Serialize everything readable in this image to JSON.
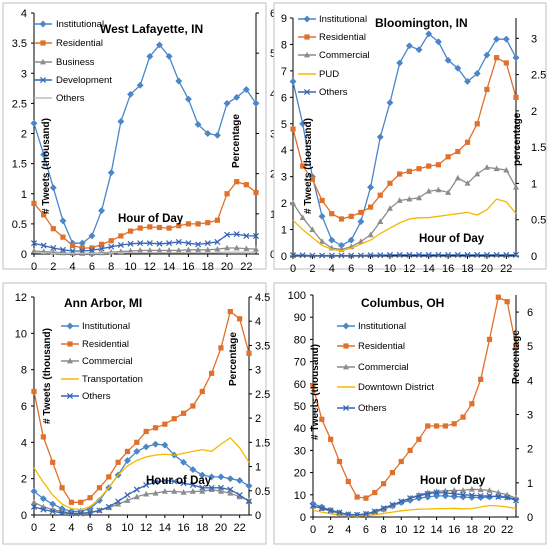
{
  "chart_data": [
    {
      "type": "line",
      "title": "West Lafayette, IN",
      "xlabel": "Hour of Day",
      "ylabel": "# Tweets (thousand)",
      "y2label": "Percentage",
      "x": [
        0,
        1,
        2,
        3,
        4,
        5,
        6,
        7,
        8,
        9,
        10,
        11,
        12,
        13,
        14,
        15,
        16,
        17,
        18,
        19,
        20,
        21,
        22,
        23
      ],
      "xticks": [
        0,
        2,
        4,
        6,
        8,
        10,
        12,
        14,
        16,
        18,
        20,
        22
      ],
      "ylim": [
        0,
        4
      ],
      "yticks": [
        "0",
        "0.5",
        "1",
        "1.5",
        "2",
        "2.5",
        "3",
        "3.5",
        "4"
      ],
      "y2lim": [
        0,
        6
      ],
      "y2ticks": [
        "0",
        "1",
        "2",
        "3",
        "4",
        "5",
        "6"
      ],
      "grid": false,
      "legend_position": "top-left",
      "series": [
        {
          "name": "Institutional",
          "color": "#4a86c8",
          "marker": "diamond",
          "values": [
            2.17,
            1.65,
            1.1,
            0.55,
            0.18,
            0.18,
            0.3,
            0.72,
            1.35,
            2.2,
            2.65,
            2.8,
            3.28,
            3.47,
            3.28,
            2.87,
            2.57,
            2.15,
            2.0,
            1.97,
            2.5,
            2.6,
            2.73,
            2.5
          ]
        },
        {
          "name": "Residential",
          "color": "#e0702a",
          "marker": "square",
          "values": [
            0.84,
            0.65,
            0.42,
            0.28,
            0.14,
            0.1,
            0.1,
            0.16,
            0.22,
            0.3,
            0.38,
            0.43,
            0.45,
            0.44,
            0.43,
            0.47,
            0.5,
            0.5,
            0.52,
            0.56,
            1.0,
            1.2,
            1.15,
            1.02
          ]
        },
        {
          "name": "Business",
          "color": "#8c8c8c",
          "marker": "triangle",
          "values": [
            0.05,
            0.04,
            0.03,
            0.02,
            0.01,
            0.01,
            0.01,
            0.02,
            0.03,
            0.04,
            0.05,
            0.06,
            0.06,
            0.06,
            0.06,
            0.06,
            0.07,
            0.07,
            0.07,
            0.08,
            0.1,
            0.1,
            0.09,
            0.08
          ]
        },
        {
          "name": "Development",
          "color": "#3565b4",
          "marker": "x",
          "values": [
            0.18,
            0.14,
            0.1,
            0.07,
            0.05,
            0.05,
            0.06,
            0.09,
            0.12,
            0.15,
            0.17,
            0.18,
            0.18,
            0.17,
            0.18,
            0.2,
            0.18,
            0.16,
            0.18,
            0.2,
            0.32,
            0.33,
            0.3,
            0.3
          ]
        },
        {
          "name": "Others",
          "color": "#bdbdbd",
          "marker": "none",
          "values": [
            0.02,
            0.02,
            0.01,
            0.01,
            0.01,
            0.01,
            0.01,
            0.01,
            0.02,
            0.02,
            0.02,
            0.02,
            0.02,
            0.02,
            0.02,
            0.02,
            0.02,
            0.02,
            0.02,
            0.02,
            0.03,
            0.03,
            0.03,
            0.03
          ]
        }
      ]
    },
    {
      "type": "line",
      "title": "Bloomington, IN",
      "xlabel": "Hour of Day",
      "ylabel": "# Tweets (thousand)",
      "y2label": "percentage",
      "x": [
        0,
        1,
        2,
        3,
        4,
        5,
        6,
        7,
        8,
        9,
        10,
        11,
        12,
        13,
        14,
        15,
        16,
        17,
        18,
        19,
        20,
        21,
        22,
        23
      ],
      "xticks": [
        0,
        2,
        4,
        6,
        8,
        10,
        12,
        14,
        16,
        18,
        20,
        22
      ],
      "ylim": [
        0,
        9
      ],
      "yticks": [
        "0",
        "1",
        "2",
        "3",
        "4",
        "5",
        "6",
        "7",
        "8",
        "9"
      ],
      "y2lim": [
        0,
        3.28
      ],
      "y2ticks": [
        "0",
        "0.5",
        "1",
        "1.5",
        "2",
        "2.5",
        "3"
      ],
      "grid": false,
      "legend_position": "top-left",
      "series": [
        {
          "name": "Institutional",
          "color": "#4a86c8",
          "marker": "diamond",
          "values": [
            6.6,
            5.0,
            3.0,
            1.5,
            0.6,
            0.4,
            0.6,
            1.3,
            2.6,
            4.5,
            5.8,
            7.3,
            7.95,
            7.8,
            8.4,
            8.1,
            7.4,
            7.1,
            6.6,
            6.9,
            7.6,
            8.2,
            8.2,
            7.5
          ]
        },
        {
          "name": "Residential",
          "color": "#e0702a",
          "marker": "square",
          "values": [
            4.8,
            3.4,
            2.9,
            2.1,
            1.6,
            1.4,
            1.5,
            1.65,
            1.85,
            2.3,
            2.75,
            3.1,
            3.2,
            3.3,
            3.4,
            3.45,
            3.75,
            3.95,
            4.3,
            5.0,
            6.3,
            7.5,
            7.3,
            6.0
          ]
        },
        {
          "name": "Commercial",
          "color": "#8c8c8c",
          "marker": "triangle",
          "values": [
            2.0,
            1.45,
            1.0,
            0.55,
            0.3,
            0.25,
            0.35,
            0.55,
            0.8,
            1.3,
            1.8,
            2.1,
            2.15,
            2.2,
            2.45,
            2.5,
            2.4,
            2.95,
            2.75,
            3.1,
            3.35,
            3.3,
            3.25,
            2.6
          ]
        },
        {
          "name": "PUD",
          "color": "#f5b800",
          "marker": "none",
          "values": [
            1.35,
            1.0,
            0.7,
            0.4,
            0.25,
            0.2,
            0.3,
            0.45,
            0.6,
            0.85,
            1.05,
            1.25,
            1.4,
            1.45,
            1.45,
            1.5,
            1.55,
            1.6,
            1.65,
            1.55,
            1.75,
            2.15,
            2.05,
            1.6
          ]
        },
        {
          "name": "Others",
          "color": "#3565b4",
          "marker": "x",
          "values": [
            0.03,
            0.03,
            0.02,
            0.02,
            0.02,
            0.02,
            0.02,
            0.02,
            0.03,
            0.03,
            0.04,
            0.04,
            0.04,
            0.04,
            0.04,
            0.04,
            0.04,
            0.04,
            0.04,
            0.04,
            0.04,
            0.04,
            0.04,
            0.04
          ]
        }
      ]
    },
    {
      "type": "line",
      "title": "Ann Arbor, MI",
      "xlabel": "Hour of Day",
      "ylabel": "# Tweets (thousand)",
      "y2label": "Percentage",
      "x": [
        0,
        1,
        2,
        3,
        4,
        5,
        6,
        7,
        8,
        9,
        10,
        11,
        12,
        13,
        14,
        15,
        16,
        17,
        18,
        19,
        20,
        21,
        22,
        23
      ],
      "xticks": [
        0,
        2,
        4,
        6,
        8,
        10,
        12,
        14,
        16,
        18,
        20,
        22
      ],
      "ylim": [
        0,
        12
      ],
      "yticks": [
        "0",
        "2",
        "4",
        "6",
        "8",
        "10",
        "12"
      ],
      "y2lim": [
        0,
        4.5
      ],
      "y2ticks": [
        "0",
        "0.5",
        "1",
        "1.5",
        "2",
        "2.5",
        "3",
        "3.5",
        "4",
        "4.5"
      ],
      "grid": false,
      "legend_position": "top-left",
      "series": [
        {
          "name": "Institutional",
          "color": "#4a86c8",
          "marker": "diamond",
          "values": [
            1.3,
            0.9,
            0.6,
            0.35,
            0.2,
            0.2,
            0.35,
            0.8,
            1.5,
            2.2,
            3.0,
            3.5,
            3.75,
            3.9,
            3.85,
            3.3,
            2.9,
            2.5,
            2.2,
            2.1,
            2.1,
            2.0,
            1.9,
            1.6
          ]
        },
        {
          "name": "Residential",
          "color": "#e0702a",
          "marker": "square",
          "values": [
            6.8,
            4.3,
            2.9,
            1.5,
            0.7,
            0.7,
            0.95,
            1.5,
            2.1,
            2.9,
            3.5,
            4.0,
            4.6,
            4.8,
            5.0,
            5.3,
            5.6,
            6.0,
            6.8,
            7.8,
            9.2,
            11.2,
            10.8,
            8.9
          ]
        },
        {
          "name": "Commercial",
          "color": "#8c8c8c",
          "marker": "triangle",
          "values": [
            0.7,
            0.45,
            0.3,
            0.2,
            0.1,
            0.1,
            0.15,
            0.25,
            0.4,
            0.6,
            0.8,
            1.0,
            1.15,
            1.2,
            1.3,
            1.3,
            1.25,
            1.3,
            1.3,
            1.4,
            1.3,
            1.2,
            1.0,
            0.8
          ]
        },
        {
          "name": "Transportation",
          "color": "#f5b800",
          "marker": "none",
          "values": [
            2.6,
            1.8,
            1.1,
            0.6,
            0.35,
            0.3,
            0.45,
            0.9,
            1.5,
            2.2,
            2.7,
            3.0,
            3.2,
            3.3,
            3.35,
            3.3,
            3.4,
            3.5,
            3.6,
            3.5,
            3.9,
            4.25,
            3.7,
            2.9
          ]
        },
        {
          "name": "Others",
          "color": "#3565b4",
          "marker": "x",
          "values": [
            0.45,
            0.3,
            0.2,
            0.12,
            0.08,
            0.08,
            0.12,
            0.25,
            0.45,
            0.75,
            1.1,
            1.4,
            1.65,
            1.8,
            1.9,
            1.85,
            1.75,
            1.65,
            1.5,
            1.5,
            1.5,
            1.4,
            1.1,
            0.75
          ]
        }
      ]
    },
    {
      "type": "line",
      "title": "Columbus, OH",
      "xlabel": "Hour of Day",
      "ylabel": "# Tweets (thousand)",
      "y2label": "Percentage",
      "x": [
        0,
        1,
        2,
        3,
        4,
        5,
        6,
        7,
        8,
        9,
        10,
        11,
        12,
        13,
        14,
        15,
        16,
        17,
        18,
        19,
        20,
        21,
        22,
        23
      ],
      "xticks": [
        0,
        2,
        4,
        6,
        8,
        10,
        12,
        14,
        16,
        18,
        20,
        22
      ],
      "ylim": [
        0,
        100
      ],
      "yticks": [
        "0",
        "10",
        "20",
        "30",
        "40",
        "50",
        "60",
        "70",
        "80",
        "90",
        "100"
      ],
      "y2lim": [
        0,
        6.5
      ],
      "y2ticks": [
        "0",
        "1",
        "2",
        "3",
        "4",
        "5",
        "6"
      ],
      "grid": false,
      "legend_position": "top-left",
      "series": [
        {
          "name": "Institutional",
          "color": "#4a86c8",
          "marker": "diamond",
          "values": [
            6.0,
            4.5,
            3.0,
            1.8,
            1.0,
            0.8,
            1.2,
            2.2,
            3.5,
            5.0,
            6.5,
            7.5,
            8.5,
            9.0,
            9.5,
            9.5,
            9.2,
            9.0,
            8.8,
            8.8,
            9.0,
            9.5,
            9.0,
            8.0
          ]
        },
        {
          "name": "Residential",
          "color": "#e0702a",
          "marker": "square",
          "values": [
            59,
            44,
            35,
            25,
            16,
            9,
            8.5,
            11,
            15,
            20,
            25,
            30,
            35,
            41,
            41,
            41,
            42,
            45,
            51,
            62,
            80,
            99,
            97,
            77
          ]
        },
        {
          "name": "Commercial",
          "color": "#8c8c8c",
          "marker": "triangle",
          "values": [
            5.0,
            3.8,
            2.6,
            1.6,
            1.0,
            0.8,
            1.2,
            2.0,
            3.5,
            5.0,
            6.8,
            8.5,
            10.0,
            11.0,
            11.5,
            11.8,
            12.0,
            12.0,
            12.5,
            12.3,
            12.0,
            11.0,
            10.0,
            8.5
          ]
        },
        {
          "name": "Downtown District",
          "color": "#f5b800",
          "marker": "none",
          "values": [
            3.0,
            2.2,
            1.5,
            0.9,
            0.5,
            0.4,
            0.6,
            1.0,
            1.6,
            2.2,
            2.8,
            3.2,
            3.5,
            3.6,
            3.8,
            3.8,
            3.9,
            3.7,
            3.8,
            4.5,
            5.2,
            5.0,
            4.5,
            3.8
          ]
        },
        {
          "name": "Others",
          "color": "#3565b4",
          "marker": "x",
          "values": [
            5.0,
            4.0,
            3.0,
            2.0,
            1.2,
            1.0,
            1.4,
            2.5,
            4.0,
            5.5,
            7.0,
            8.5,
            9.5,
            10.5,
            11.0,
            10.8,
            10.5,
            10.0,
            9.8,
            9.5,
            9.5,
            9.0,
            8.8,
            7.5
          ]
        }
      ]
    }
  ]
}
